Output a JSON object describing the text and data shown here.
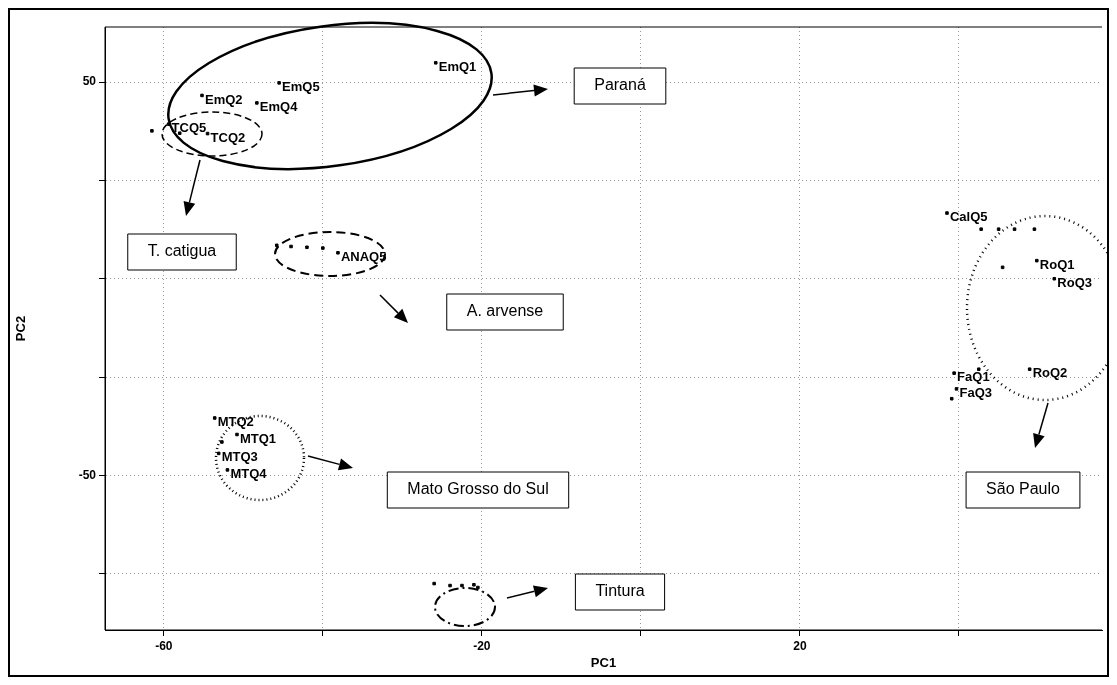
{
  "chart_data": {
    "type": "scatter",
    "xlabel": "PC1",
    "ylabel": "PC2",
    "xlim": [
      -67.4,
      58
    ],
    "ylim": [
      -89.3,
      64
    ],
    "xticks": [
      -60,
      {
        "value": -40,
        "label": null
      },
      -20,
      {
        "value": 0,
        "label": null
      },
      20,
      {
        "value": 40,
        "label": null
      }
    ],
    "yticks": [
      50,
      {
        "value": 25,
        "label": null
      },
      {
        "value": 0,
        "label": null
      },
      {
        "value": -25,
        "label": null
      },
      -50,
      {
        "value": -75,
        "label": null
      }
    ],
    "grid": true,
    "legend": false,
    "marker": "square",
    "series": [
      {
        "color": "#000000",
        "x": [
          -25.8,
          -45.5,
          -55.2,
          -48.3,
          -52.0,
          -59.4,
          -54.5,
          -61.5,
          -58.0,
          -56.0,
          -38.1,
          -45.8,
          -44.0,
          -42.0,
          -40.0,
          38.5,
          42.8,
          45.0,
          47.0,
          49.5,
          49.8,
          45.5,
          52.0,
          39.4,
          48.9,
          39.7,
          42.5,
          39.1,
          -53.6,
          -50.8,
          -53.1,
          -52.0,
          -52.7,
          -26.0,
          -24.0,
          -22.5,
          -21.0,
          -20.5
        ],
        "values": [
          54.9,
          49.8,
          46.6,
          44.7,
          null,
          39.3,
          36.9,
          37.6,
          37.0,
          null,
          6.6,
          8.5,
          8.2,
          8.0,
          7.8,
          16.7,
          12.6,
          12.6,
          12.6,
          12.6,
          4.6,
          2.9,
          0.0,
          -24.0,
          -23.0,
          -28.0,
          -23.0,
          -30.5,
          -35.4,
          -39.6,
          -44.4,
          -48.6,
          -41.5,
          -77.5,
          -78.0,
          -78.0,
          -77.8,
          -78.5
        ],
        "value_labels": [
          "EmQ1",
          "EmQ5",
          "EmQ2",
          "EmQ4",
          null,
          "TCQ5",
          "TCQ2",
          null,
          null,
          null,
          "ANAQ5",
          null,
          null,
          null,
          null,
          "CalQ5",
          null,
          null,
          null,
          null,
          "RoQ1",
          null,
          "RoQ3",
          "FaQ1",
          "RoQ2",
          "FaQ3",
          null,
          null,
          "MTQ2",
          "MTQ1",
          "MTQ3",
          "MTQ4",
          null,
          null,
          null,
          null,
          null,
          null
        ]
      }
    ],
    "annotations": [
      "Paraná",
      "T. catigua",
      "A. arvense",
      "Mato Grosso do Sul",
      "São Paulo",
      "Tintura"
    ]
  }
}
